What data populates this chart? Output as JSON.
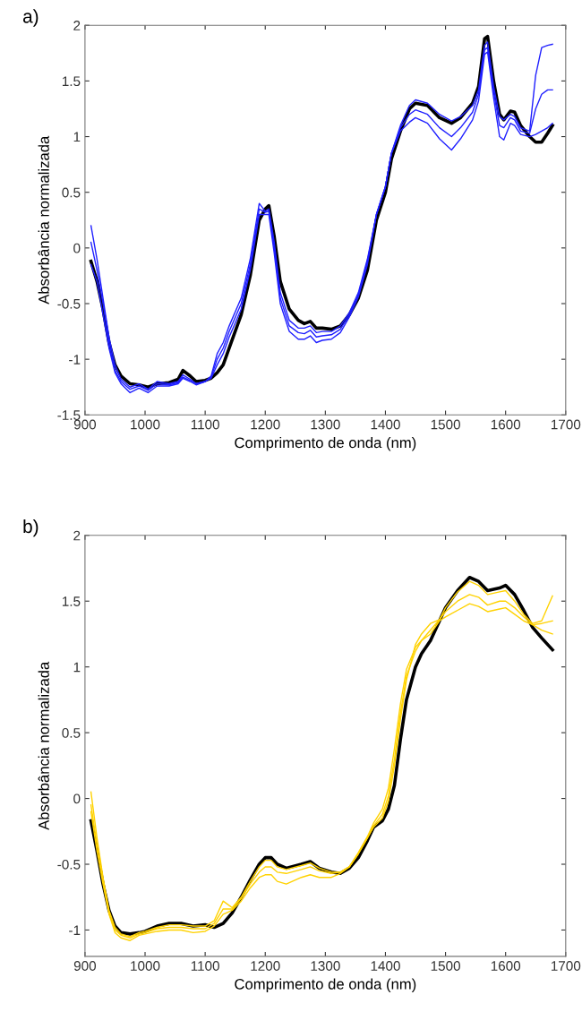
{
  "chart_data": [
    {
      "type": "line",
      "title": "a)",
      "xlabel": "Comprimento de onda (nm)",
      "ylabel": "Absorbância normalizada",
      "xlim": [
        900,
        1700
      ],
      "xticks": [
        900,
        1000,
        1100,
        1200,
        1300,
        1400,
        1500,
        1600,
        1700
      ],
      "ylim": [
        -1.5,
        2
      ],
      "yticks": [
        -1.5,
        -1,
        -0.5,
        0,
        0.5,
        1,
        1.5,
        2
      ],
      "grid": false,
      "x": [
        910,
        920,
        930,
        940,
        950,
        960,
        975,
        990,
        1005,
        1020,
        1040,
        1055,
        1063,
        1075,
        1085,
        1100,
        1110,
        1120,
        1130,
        1140,
        1160,
        1175,
        1190,
        1200,
        1206,
        1215,
        1225,
        1240,
        1255,
        1265,
        1275,
        1285,
        1295,
        1310,
        1325,
        1340,
        1355,
        1370,
        1385,
        1400,
        1410,
        1425,
        1440,
        1450,
        1470,
        1490,
        1510,
        1525,
        1545,
        1555,
        1565,
        1570,
        1580,
        1590,
        1597,
        1608,
        1615,
        1625,
        1640,
        1650,
        1660,
        1670,
        1678
      ],
      "series": [
        {
          "color": "#000000",
          "values": [
            -0.12,
            -0.3,
            -0.55,
            -0.85,
            -1.05,
            -1.15,
            -1.22,
            -1.23,
            -1.25,
            -1.22,
            -1.21,
            -1.18,
            -1.1,
            -1.15,
            -1.2,
            -1.19,
            -1.17,
            -1.12,
            -1.05,
            -0.9,
            -0.6,
            -0.25,
            0.25,
            0.35,
            0.38,
            0.1,
            -0.3,
            -0.55,
            -0.65,
            -0.68,
            -0.66,
            -0.72,
            -0.72,
            -0.73,
            -0.7,
            -0.6,
            -0.45,
            -0.2,
            0.25,
            0.5,
            0.8,
            1.05,
            1.25,
            1.3,
            1.28,
            1.17,
            1.12,
            1.17,
            1.3,
            1.45,
            1.88,
            1.9,
            1.5,
            1.2,
            1.15,
            1.23,
            1.22,
            1.1,
            1.0,
            0.95,
            0.95,
            1.03,
            1.1
          ]
        },
        {
          "color": "#1f1fff",
          "values": [
            0.2,
            -0.1,
            -0.45,
            -0.8,
            -1.05,
            -1.18,
            -1.25,
            -1.22,
            -1.27,
            -1.2,
            -1.22,
            -1.2,
            -1.14,
            -1.18,
            -1.22,
            -1.2,
            -1.15,
            -0.95,
            -0.85,
            -0.7,
            -0.45,
            -0.1,
            0.4,
            0.33,
            0.35,
            0.05,
            -0.4,
            -0.65,
            -0.72,
            -0.72,
            -0.7,
            -0.76,
            -0.75,
            -0.75,
            -0.7,
            -0.58,
            -0.4,
            -0.1,
            0.3,
            0.55,
            0.85,
            1.1,
            1.28,
            1.33,
            1.3,
            1.2,
            1.14,
            1.18,
            1.28,
            1.42,
            1.82,
            1.85,
            1.45,
            1.18,
            1.15,
            1.2,
            1.18,
            1.08,
            1.05,
            1.55,
            1.8,
            1.82,
            1.83
          ]
        },
        {
          "color": "#1f1fff",
          "values": [
            0.05,
            -0.2,
            -0.5,
            -0.85,
            -1.1,
            -1.2,
            -1.27,
            -1.24,
            -1.28,
            -1.22,
            -1.23,
            -1.21,
            -1.16,
            -1.19,
            -1.22,
            -1.2,
            -1.16,
            -1.0,
            -0.9,
            -0.75,
            -0.5,
            -0.15,
            0.35,
            0.32,
            0.33,
            0.0,
            -0.45,
            -0.7,
            -0.76,
            -0.77,
            -0.74,
            -0.8,
            -0.79,
            -0.78,
            -0.73,
            -0.6,
            -0.42,
            -0.12,
            0.3,
            0.55,
            0.85,
            1.08,
            1.2,
            1.24,
            1.2,
            1.08,
            1.0,
            1.08,
            1.22,
            1.38,
            1.78,
            1.8,
            1.4,
            1.1,
            1.08,
            1.17,
            1.15,
            1.05,
            1.03,
            1.25,
            1.38,
            1.42,
            1.42
          ]
        },
        {
          "color": "#1f1fff",
          "values": [
            -0.15,
            -0.3,
            -0.6,
            -0.9,
            -1.12,
            -1.22,
            -1.3,
            -1.26,
            -1.3,
            -1.24,
            -1.24,
            -1.22,
            -1.17,
            -1.2,
            -1.23,
            -1.2,
            -1.17,
            -1.05,
            -0.95,
            -0.8,
            -0.55,
            -0.2,
            0.3,
            0.3,
            0.3,
            -0.05,
            -0.5,
            -0.75,
            -0.82,
            -0.82,
            -0.79,
            -0.85,
            -0.83,
            -0.82,
            -0.76,
            -0.62,
            -0.44,
            -0.15,
            0.3,
            0.55,
            0.85,
            1.05,
            1.13,
            1.17,
            1.12,
            0.98,
            0.88,
            0.98,
            1.15,
            1.32,
            1.74,
            1.76,
            1.35,
            1.0,
            0.97,
            1.12,
            1.1,
            1.02,
            1.0,
            1.02,
            1.05,
            1.08,
            1.12
          ]
        }
      ]
    },
    {
      "type": "line",
      "title": "b)",
      "xlabel": "Comprimento de onda (nm)",
      "ylabel": "Absorbância normalizada",
      "xlim": [
        900,
        1700
      ],
      "xticks": [
        900,
        1000,
        1100,
        1200,
        1300,
        1400,
        1500,
        1600,
        1700
      ],
      "ylim": [
        -1.2,
        2
      ],
      "yticks": [
        -1,
        -0.5,
        0,
        0.5,
        1,
        1.5,
        2
      ],
      "grid": false,
      "x": [
        910,
        920,
        930,
        940,
        950,
        960,
        975,
        990,
        1000,
        1020,
        1040,
        1060,
        1080,
        1100,
        1115,
        1130,
        1145,
        1160,
        1175,
        1190,
        1200,
        1210,
        1220,
        1235,
        1260,
        1275,
        1290,
        1310,
        1325,
        1340,
        1355,
        1370,
        1380,
        1395,
        1405,
        1415,
        1425,
        1435,
        1450,
        1460,
        1475,
        1490,
        1500,
        1520,
        1540,
        1555,
        1570,
        1590,
        1600,
        1615,
        1630,
        1645,
        1660,
        1678
      ],
      "series": [
        {
          "color": "#000000",
          "values": [
            -0.17,
            -0.4,
            -0.65,
            -0.85,
            -0.97,
            -1.02,
            -1.03,
            -1.02,
            -1.01,
            -0.97,
            -0.95,
            -0.95,
            -0.97,
            -0.96,
            -0.98,
            -0.95,
            -0.87,
            -0.75,
            -0.62,
            -0.5,
            -0.45,
            -0.45,
            -0.5,
            -0.53,
            -0.5,
            -0.48,
            -0.53,
            -0.56,
            -0.57,
            -0.53,
            -0.45,
            -0.32,
            -0.22,
            -0.17,
            -0.08,
            0.1,
            0.45,
            0.75,
            1.0,
            1.1,
            1.2,
            1.35,
            1.45,
            1.58,
            1.68,
            1.65,
            1.58,
            1.6,
            1.62,
            1.55,
            1.43,
            1.3,
            1.22,
            1.13
          ]
        },
        {
          "color": "#ffd200",
          "values": [
            0.05,
            -0.3,
            -0.6,
            -0.85,
            -0.98,
            -1.03,
            -1.05,
            -1.02,
            -1.01,
            -0.98,
            -0.96,
            -0.96,
            -0.97,
            -0.97,
            -0.93,
            -0.78,
            -0.83,
            -0.75,
            -0.63,
            -0.52,
            -0.47,
            -0.47,
            -0.52,
            -0.54,
            -0.51,
            -0.49,
            -0.53,
            -0.56,
            -0.56,
            -0.52,
            -0.42,
            -0.3,
            -0.22,
            -0.15,
            -0.02,
            0.25,
            0.6,
            0.9,
            1.17,
            1.25,
            1.33,
            1.36,
            1.45,
            1.57,
            1.65,
            1.62,
            1.55,
            1.57,
            1.58,
            1.5,
            1.4,
            1.33,
            1.35,
            1.54
          ]
        },
        {
          "color": "#ffd200",
          "values": [
            -0.05,
            -0.35,
            -0.62,
            -0.86,
            -1.0,
            -1.04,
            -1.06,
            -1.03,
            -1.02,
            -0.99,
            -0.98,
            -0.98,
            -0.99,
            -0.99,
            -0.95,
            -0.84,
            -0.84,
            -0.76,
            -0.65,
            -0.56,
            -0.52,
            -0.52,
            -0.56,
            -0.57,
            -0.54,
            -0.52,
            -0.55,
            -0.57,
            -0.56,
            -0.52,
            -0.42,
            -0.3,
            -0.21,
            -0.12,
            0.02,
            0.3,
            0.65,
            0.93,
            1.12,
            1.2,
            1.28,
            1.36,
            1.42,
            1.5,
            1.55,
            1.53,
            1.47,
            1.5,
            1.5,
            1.45,
            1.38,
            1.32,
            1.33,
            1.35
          ]
        },
        {
          "color": "#ffd200",
          "values": [
            -0.1,
            -0.4,
            -0.65,
            -0.88,
            -1.02,
            -1.06,
            -1.08,
            -1.04,
            -1.03,
            -1.01,
            -1.0,
            -1.0,
            -1.02,
            -1.01,
            -0.97,
            -0.88,
            -0.85,
            -0.78,
            -0.68,
            -0.6,
            -0.58,
            -0.58,
            -0.63,
            -0.65,
            -0.6,
            -0.58,
            -0.6,
            -0.6,
            -0.57,
            -0.52,
            -0.41,
            -0.29,
            -0.19,
            -0.08,
            0.08,
            0.38,
            0.72,
            0.98,
            1.15,
            1.2,
            1.25,
            1.35,
            1.38,
            1.43,
            1.48,
            1.46,
            1.42,
            1.44,
            1.45,
            1.4,
            1.35,
            1.32,
            1.28,
            1.25
          ]
        }
      ]
    }
  ]
}
